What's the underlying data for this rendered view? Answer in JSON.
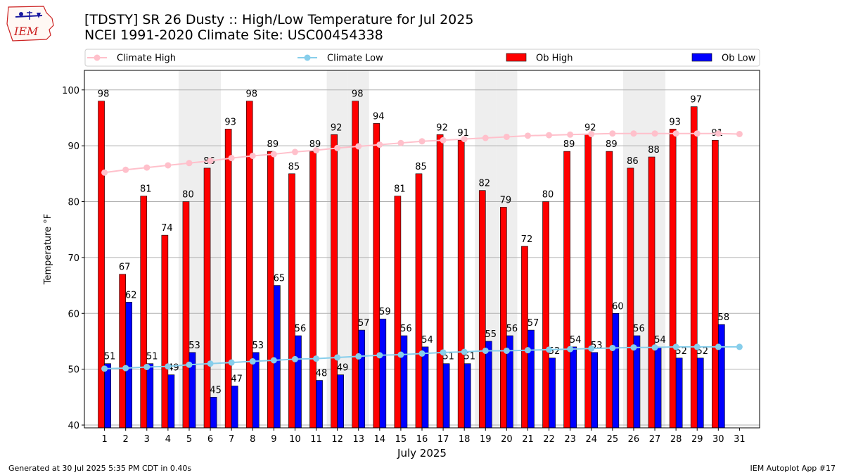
{
  "header": {
    "title_line1": "[TDSTY] SR 26 Dusty  :: High/Low Temperature for Jul 2025",
    "title_line2": "NCEI 1991-2020 Climate Site: USC00454338",
    "logo_text": "IEM"
  },
  "footer": {
    "left": "Generated at 30 Jul 2025 5:35 PM CDT in 0.40s",
    "right": "IEM Autoplot App #17"
  },
  "colors": {
    "ob_high": "#ff0000",
    "ob_low": "#0000ff",
    "climate_high": "#ffc0cb",
    "climate_low": "#87ceeb",
    "weekend_shade": "#eeeeee",
    "logo": "#cc2222"
  },
  "chart_data": {
    "type": "bar",
    "xlabel": "July 2025",
    "ylabel": "Temperature °F",
    "ylim": [
      39.5,
      103.5
    ],
    "yticks": [
      40,
      50,
      60,
      70,
      80,
      90,
      100
    ],
    "grid": "horizontal",
    "legend_placement": "top, above plot",
    "categories": [
      "1",
      "2",
      "3",
      "4",
      "5",
      "6",
      "7",
      "8",
      "9",
      "10",
      "11",
      "12",
      "13",
      "14",
      "15",
      "16",
      "17",
      "18",
      "19",
      "20",
      "21",
      "22",
      "23",
      "24",
      "25",
      "26",
      "27",
      "28",
      "29",
      "30",
      "31"
    ],
    "shaded_days": [
      5,
      6,
      12,
      13,
      19,
      20,
      26,
      27
    ],
    "series": [
      {
        "name": "Ob High",
        "kind": "bar",
        "color": "#ff0000",
        "values": [
          98,
          67,
          81,
          74,
          80,
          86,
          93,
          98,
          89,
          85,
          89,
          92,
          98,
          94,
          81,
          85,
          92,
          91,
          82,
          79,
          72,
          80,
          89,
          92,
          89,
          86,
          88,
          93,
          97,
          91,
          null
        ]
      },
      {
        "name": "Ob Low",
        "kind": "bar",
        "color": "#0000ff",
        "values": [
          51,
          62,
          51,
          49,
          53,
          45,
          47,
          53,
          65,
          56,
          48,
          49,
          57,
          59,
          56,
          54,
          51,
          51,
          55,
          56,
          57,
          52,
          54,
          53,
          60,
          56,
          54,
          52,
          52,
          58,
          null
        ]
      },
      {
        "name": "Climate High",
        "kind": "line",
        "color": "#ffc0cb",
        "values": [
          85.2,
          85.7,
          86.1,
          86.5,
          86.9,
          87.3,
          87.8,
          88.2,
          88.5,
          88.9,
          89.2,
          89.6,
          89.9,
          90.2,
          90.5,
          90.8,
          91.0,
          91.2,
          91.4,
          91.6,
          91.8,
          91.9,
          92.0,
          92.1,
          92.2,
          92.2,
          92.2,
          92.2,
          92.2,
          92.2,
          92.1
        ]
      },
      {
        "name": "Climate Low",
        "kind": "line",
        "color": "#87ceeb",
        "values": [
          50.1,
          50.2,
          50.4,
          50.5,
          50.8,
          51.0,
          51.2,
          51.4,
          51.6,
          51.8,
          51.9,
          52.1,
          52.3,
          52.5,
          52.6,
          52.8,
          53.0,
          53.1,
          53.3,
          53.3,
          53.4,
          53.5,
          53.6,
          53.7,
          53.8,
          53.9,
          53.9,
          54.0,
          54.0,
          54.0,
          54.0
        ]
      }
    ]
  }
}
